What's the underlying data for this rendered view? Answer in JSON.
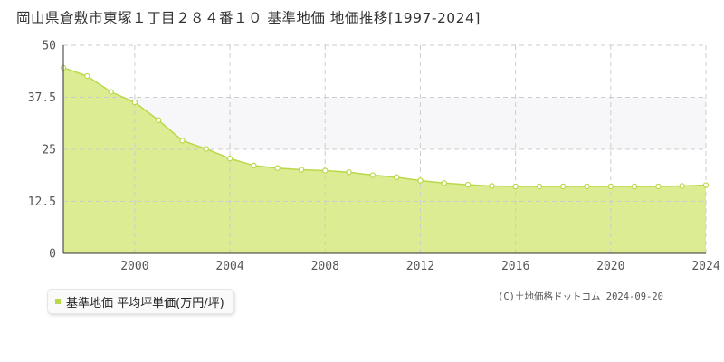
{
  "title": "岡山県倉敷市東塚１丁目２８４番１０ 基準地価 地価推移[1997-2024]",
  "legend_label": "基準地価 平均坪単価(万円/坪)",
  "copyright": "(C)土地価格ドットコム 2024-09-20",
  "colors": {
    "fill": "#dcec92",
    "line": "#b8d94a",
    "band": "#f7f7f9",
    "grid": "#cccccc"
  },
  "chart_data": {
    "type": "area",
    "title": "岡山県倉敷市東塚１丁目２８４番１０ 基準地価 地価推移[1997-2024]",
    "xlabel": "",
    "ylabel": "",
    "xlim": [
      1997,
      2024
    ],
    "ylim": [
      0,
      50
    ],
    "y_ticks": [
      0,
      12.5,
      25,
      37.5,
      50
    ],
    "y_tick_labels": [
      "0",
      "12.5",
      "25",
      "37.5",
      "50"
    ],
    "x_ticks": [
      2000,
      2004,
      2008,
      2012,
      2016,
      2020,
      2024
    ],
    "x_tick_labels": [
      "2000",
      "2004",
      "2008",
      "2012",
      "2016",
      "2020",
      "2024"
    ],
    "grid": true,
    "legend_position": "bottom-left",
    "series": [
      {
        "name": "基準地価 平均坪単価(万円/坪)",
        "x": [
          1997,
          1998,
          1999,
          2000,
          2001,
          2002,
          2003,
          2004,
          2005,
          2006,
          2007,
          2008,
          2009,
          2010,
          2011,
          2012,
          2013,
          2014,
          2015,
          2016,
          2017,
          2018,
          2019,
          2020,
          2021,
          2022,
          2023,
          2024
        ],
        "values": [
          44.6,
          42.6,
          38.8,
          36.3,
          32.0,
          27.1,
          25.1,
          22.8,
          21.1,
          20.5,
          20.1,
          19.9,
          19.5,
          18.8,
          18.3,
          17.5,
          16.9,
          16.5,
          16.2,
          16.1,
          16.1,
          16.1,
          16.1,
          16.1,
          16.1,
          16.1,
          16.2,
          16.4
        ]
      }
    ]
  }
}
